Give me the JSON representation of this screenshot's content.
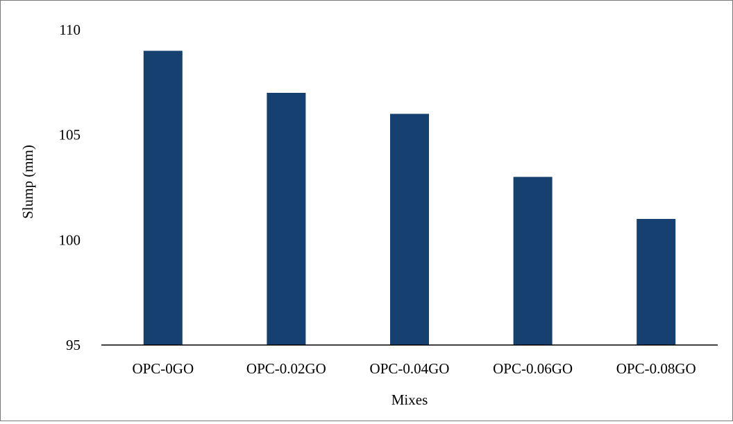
{
  "chart_data": {
    "type": "bar",
    "title": "",
    "xlabel": "Mixes",
    "ylabel": "Slump (mm)",
    "categories": [
      "OPC-0GO",
      "OPC-0.02GO",
      "OPC-0.04GO",
      "OPC-0.06GO",
      "OPC-0.08GO"
    ],
    "values": [
      109,
      107,
      106,
      103,
      101
    ],
    "ylim": [
      95,
      110
    ],
    "yticks": [
      95,
      100,
      105,
      110
    ],
    "grid": false,
    "legend": "none",
    "bar_color": "#15406F",
    "axis_color": "#000000",
    "border_color": "#767676"
  }
}
